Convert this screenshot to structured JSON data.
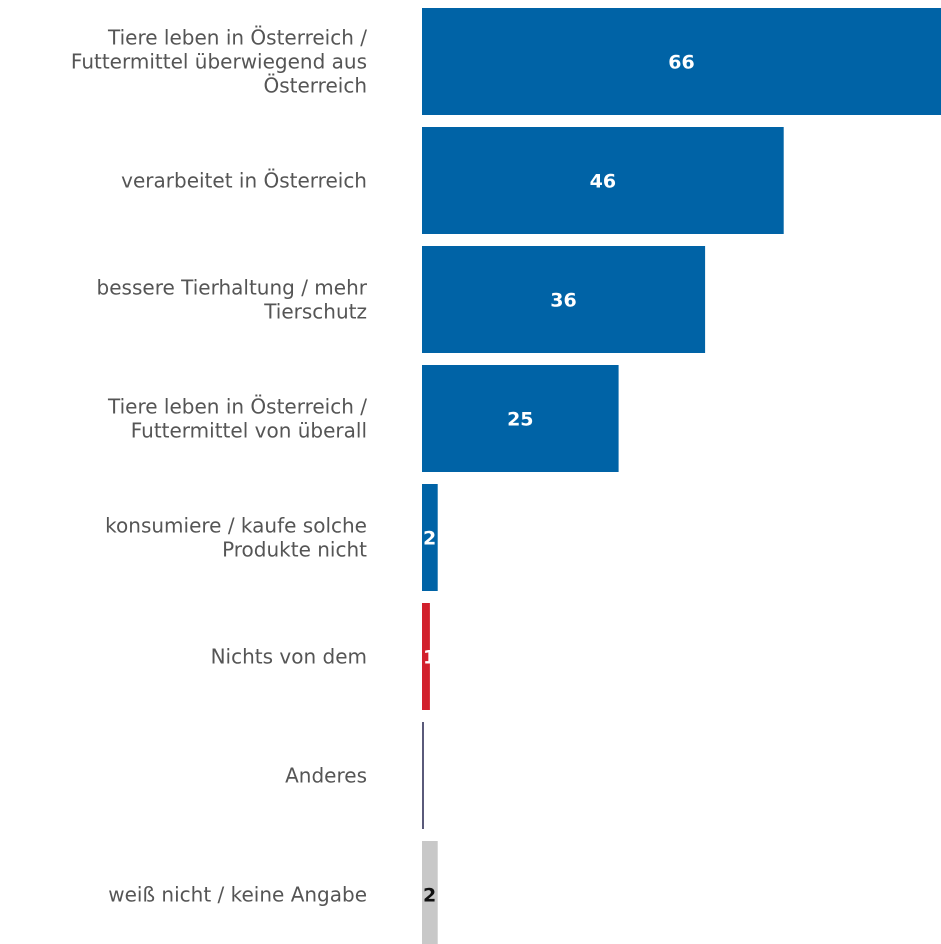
{
  "chart_data": {
    "type": "bar",
    "orientation": "horizontal",
    "categories": [
      "Tiere leben in Österreich / Futtermittel überwiegend aus Österreich",
      "verarbeitet in Österreich",
      "bessere Tierhaltung / mehr Tierschutz",
      "Tiere leben in Österreich / Futtermittel von überall",
      "konsumiere / kaufe solche Produkte nicht",
      "Nichts von dem",
      "Anderes",
      "weiß nicht / keine Angabe"
    ],
    "category_lines": [
      [
        "Tiere leben in Österreich /",
        "Futtermittel überwiegend aus",
        "Österreich"
      ],
      [
        "verarbeitet in Österreich"
      ],
      [
        "bessere Tierhaltung / mehr",
        "Tierschutz"
      ],
      [
        "Tiere leben in Österreich /",
        "Futtermittel von überall"
      ],
      [
        "konsumiere / kaufe solche",
        "Produkte nicht"
      ],
      [
        "Nichts von dem"
      ],
      [
        "Anderes"
      ],
      [
        "weiß nicht / keine Angabe"
      ]
    ],
    "values": [
      66,
      46,
      36,
      25,
      2,
      1,
      0,
      2
    ],
    "value_labels": [
      "66",
      "46",
      "36",
      "25",
      "2",
      "1",
      "",
      "2"
    ],
    "bar_colors": [
      "#0063a6",
      "#0063a6",
      "#0063a6",
      "#0063a6",
      "#0063a6",
      "#d2202c",
      "#5a5a7a",
      "#c8c8c8"
    ],
    "label_colors": [
      "#ffffff",
      "#ffffff",
      "#ffffff",
      "#ffffff",
      "#ffffff",
      "#ffffff",
      "#ffffff",
      "#111111"
    ],
    "xlim": [
      0,
      66
    ],
    "grid": false,
    "legend": "none"
  }
}
